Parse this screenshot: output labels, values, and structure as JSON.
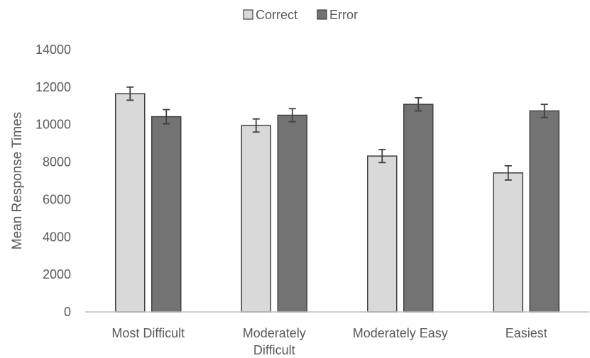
{
  "chart_data": {
    "type": "bar",
    "title": "",
    "xlabel": "",
    "ylabel": "Mean Response Times",
    "ylim": [
      0,
      14000
    ],
    "yticks": [
      0,
      2000,
      4000,
      6000,
      8000,
      10000,
      12000,
      14000
    ],
    "grid": false,
    "legend_position": "top-center",
    "categories": [
      [
        "Most Difficult"
      ],
      [
        "Moderately",
        "Difficult"
      ],
      [
        "Moderately Easy"
      ],
      [
        "Easiest"
      ]
    ],
    "series": [
      {
        "name": "Correct",
        "color": "#d9d9d9",
        "values": [
          11650,
          9950,
          8320,
          7420
        ],
        "error": [
          350,
          350,
          350,
          380
        ]
      },
      {
        "name": "Error",
        "color": "#737373",
        "values": [
          10420,
          10500,
          11080,
          10730
        ],
        "error": [
          380,
          350,
          350,
          350
        ]
      }
    ]
  }
}
